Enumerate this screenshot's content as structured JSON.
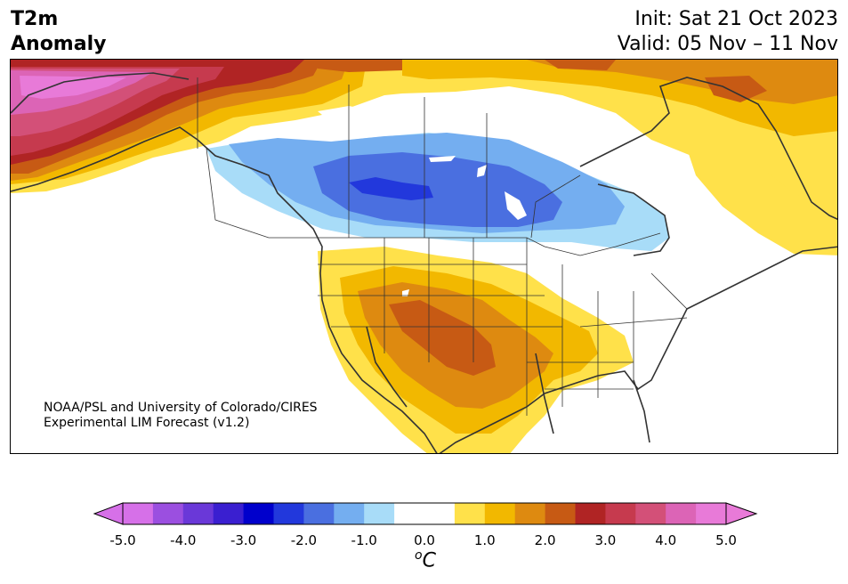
{
  "header": {
    "title_line1": "T2m",
    "title_line2": "Anomaly",
    "init": "Init: Sat 21 Oct 2023",
    "valid": "Valid: 05 Nov – 11 Nov"
  },
  "credit": {
    "line1": "NOAA/PSL and University of Colorado/CIRES",
    "line2": "Experimental LIM Forecast (v1.2)"
  },
  "colorbar": {
    "colors": [
      "#d670e8",
      "#9b4fe0",
      "#6a38d8",
      "#3a1fd0",
      "#0000cc",
      "#2238dc",
      "#4a6fe0",
      "#74aef0",
      "#a8dcf8",
      "#ffffff",
      "#ffffff",
      "#ffe14a",
      "#f2b800",
      "#de8a10",
      "#c75a14",
      "#b02424",
      "#c63a4e",
      "#d35078",
      "#dc64b6",
      "#e87ad8"
    ],
    "ticks": [
      "-5.0",
      "-4.0",
      "-3.0",
      "-2.0",
      "-1.0",
      "0.0",
      "1.0",
      "2.0",
      "3.0",
      "4.0",
      "5.0"
    ],
    "unit_sup": "o",
    "unit_main": "C"
  },
  "map": {
    "region": "North America",
    "variable": "2m temperature anomaly",
    "cold_anomaly_center": "southern Prairie Provinces / northern Plains",
    "warm_anomaly_centers": [
      "Alaska",
      "US Southwest and southern Plains",
      "Hudson Bay and eastern Canada"
    ]
  }
}
